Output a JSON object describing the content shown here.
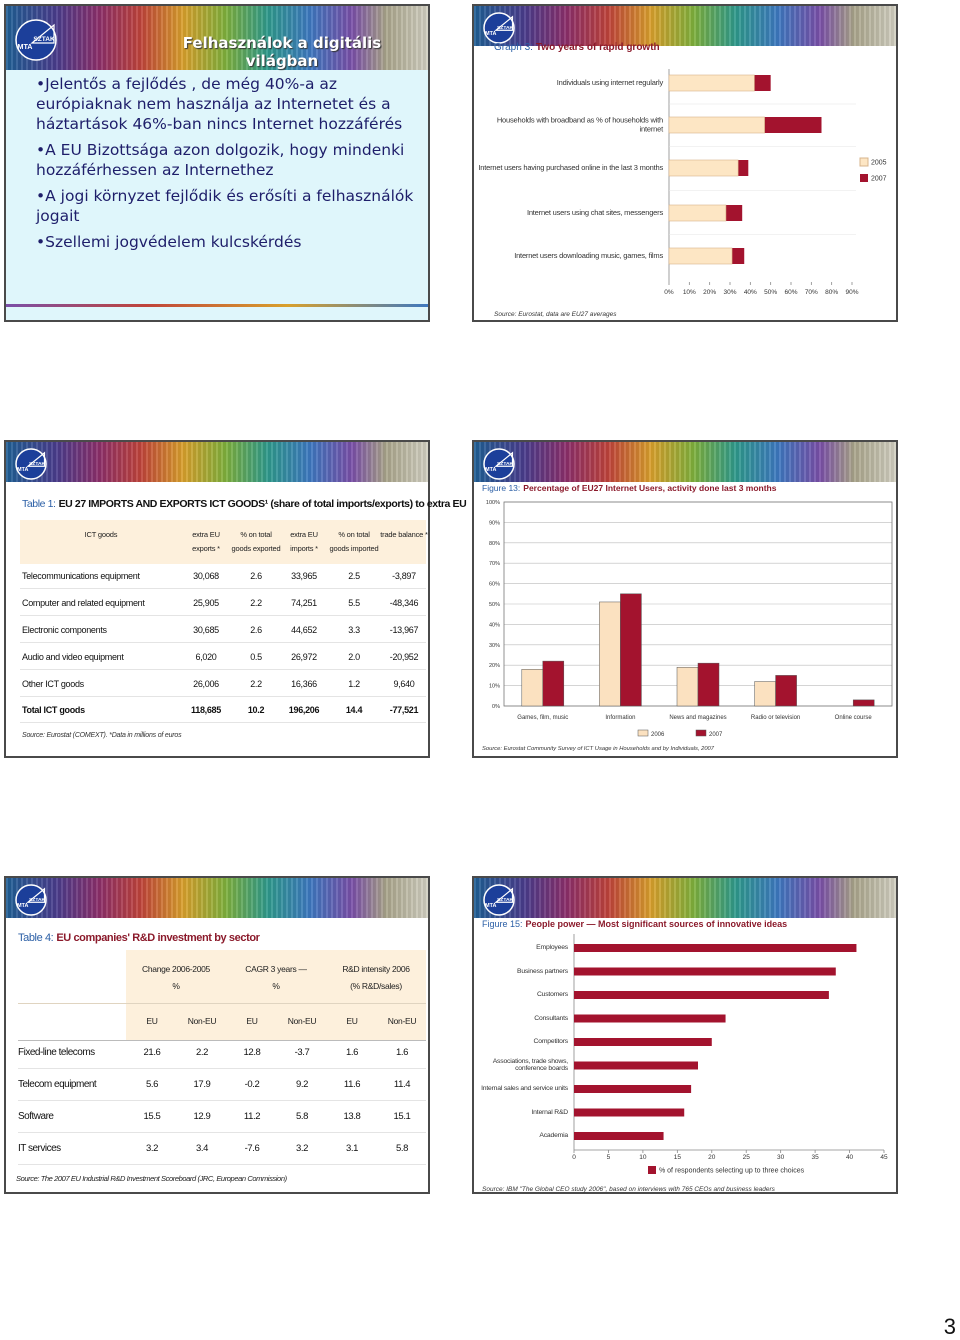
{
  "logo": [
    "MTA",
    "SZTAKI"
  ],
  "page_number": "3",
  "slides": [
    {
      "type": "bullets",
      "title": "Felhasználok a digitális világban",
      "bullets": [
        "Jelentős a fejlődés , de még 40%-a az európiaknak nem használja az Internetet és a háztartások 46%-ban nincs Internet hozzáférés",
        "A EU Bizottsága azon dolgozik, hogy mindenki hozzáférhessen az Internethez",
        "A jogi környzet fejlődik és erősíti a felhasználók jogait",
        "Szellemi jogvédelem kulcskérdés"
      ]
    },
    {
      "type": "hbar",
      "label": "Graph 3:",
      "title": "Two years of rapid growth",
      "categories": [
        "Individuals using internet regularly",
        "Households with broadband as % of households with internet",
        "Internet users having purchased online in the last 3 months",
        "Internet users using chat sites, messengers",
        "Internet users downloading music, games, films"
      ],
      "series": [
        {
          "name": "2005",
          "color": "#fde6c4",
          "values": [
            42,
            47,
            34,
            28,
            31
          ]
        },
        {
          "name": "2007",
          "color": "#a3132e",
          "values": [
            50,
            75,
            39,
            36,
            37
          ]
        }
      ],
      "xlim": [
        0,
        90
      ],
      "xticks": [
        {
          "value": 0,
          "label": "0%"
        },
        {
          "value": 10,
          "label": "10%"
        },
        {
          "value": 20,
          "label": "20%"
        },
        {
          "value": 30,
          "label": "30%"
        },
        {
          "value": 40,
          "label": "40%"
        },
        {
          "value": 50,
          "label": "50%"
        },
        {
          "value": 60,
          "label": "60%"
        },
        {
          "value": 70,
          "label": "70%"
        },
        {
          "value": 80,
          "label": "80%"
        },
        {
          "value": 90,
          "label": "90%"
        }
      ],
      "legend": "right",
      "source": "Source: Eurostat, data are EU27 averages"
    },
    {
      "type": "table",
      "label": "Table 1:",
      "title": "EU 27 IMPORTS AND EXPORTS ICT GOODS¹ (share of total imports/exports) to extra EU",
      "columns": [
        "ICT goods",
        "extra EU exports *",
        "% on total goods exported",
        "extra EU imports *",
        "% on total goods imported",
        "trade balance *"
      ],
      "rows": [
        [
          "Telecommunications equipment",
          "30,068",
          "2.6",
          "33,965",
          "2.5",
          "-3,897"
        ],
        [
          "Computer and related equipment",
          "25,905",
          "2.2",
          "74,251",
          "5.5",
          "-48,346"
        ],
        [
          "Electronic components",
          "30,685",
          "2.6",
          "44,652",
          "3.3",
          "-13,967"
        ],
        [
          "Audio and video equipment",
          "6,020",
          "0.5",
          "26,972",
          "2.0",
          "-20,952"
        ],
        [
          "Other ICT goods",
          "26,006",
          "2.2",
          "16,366",
          "1.2",
          "9,640"
        ],
        [
          "Total ICT goods",
          "118,685",
          "10.2",
          "196,206",
          "14.4",
          "-77,521"
        ]
      ],
      "source": "Source: Eurostat (COMEXT). *Data in millions of euros"
    },
    {
      "type": "vbar",
      "label": "Figure 13:",
      "title": "Percentage of EU27 Internet Users, activity done last 3 months",
      "categories": [
        "Games, film, music",
        "Information",
        "News and magazines",
        "Radio or television",
        "Online course"
      ],
      "series": [
        {
          "name": "2006",
          "color": "#fbe1c0",
          "values": [
            18,
            51,
            19,
            12,
            null
          ]
        },
        {
          "name": "2007",
          "color": "#a3132e",
          "values": [
            22,
            55,
            21,
            15,
            3
          ]
        }
      ],
      "ylim": [
        0,
        100
      ],
      "yticks": [
        {
          "value": 0,
          "label": "0%"
        },
        {
          "value": 10,
          "label": "10%"
        },
        {
          "value": 20,
          "label": "20%"
        },
        {
          "value": 30,
          "label": "30%"
        },
        {
          "value": 40,
          "label": "40%"
        },
        {
          "value": 50,
          "label": "50%"
        },
        {
          "value": 60,
          "label": "60%"
        },
        {
          "value": 70,
          "label": "70%"
        },
        {
          "value": 80,
          "label": "80%"
        },
        {
          "value": 90,
          "label": "90%"
        },
        {
          "value": 100,
          "label": "100%"
        }
      ],
      "grid": true,
      "legend": "bottom",
      "source": "Source: Eurostat Community Survey of ICT Usage in Households and by Individuals, 2007"
    },
    {
      "type": "table2",
      "label": "Table 4:",
      "title": "EU companies' R&D investment by sector",
      "groups": [
        [
          "Change 2006-2005",
          "%"
        ],
        [
          "CAGR 3 years —",
          "%"
        ],
        [
          "R&D intensity 2006",
          "(% R&D/sales)"
        ]
      ],
      "subheaders": [
        "EU",
        "Non-EU",
        "EU",
        "Non-EU",
        "EU",
        "Non-EU"
      ],
      "rows": [
        [
          "Fixed-line telecoms",
          "21.6",
          "2.2",
          "12.8",
          "-3.7",
          "1.6",
          "1.6"
        ],
        [
          "Telecom equipment",
          "5.6",
          "17.9",
          "-0.2",
          "9.2",
          "11.6",
          "11.4"
        ],
        [
          "Software",
          "15.5",
          "12.9",
          "11.2",
          "5.8",
          "13.8",
          "15.1"
        ],
        [
          "IT services",
          "3.2",
          "3.4",
          "-7.6",
          "3.2",
          "3.1",
          "5.8"
        ]
      ],
      "source": "Source: The 2007 EU Industrial R&D Investment Scoreboard (JRC, European Commission)"
    },
    {
      "type": "hbar",
      "label": "Figure 15:",
      "title": "People power — Most significant sources of innovative ideas",
      "categories": [
        "Employees",
        "Business partners",
        "Customers",
        "Consultants",
        "Competitors",
        "Associations, trade shows, conference boards",
        "Internal sales and service units",
        "Internal R&D",
        "Academia"
      ],
      "series": [
        {
          "name": "% of respondents selecting up to three choices",
          "color": "#a3132e",
          "values": [
            41,
            38,
            37,
            22,
            20,
            18,
            17,
            16,
            13
          ]
        }
      ],
      "xlim": [
        0,
        45
      ],
      "xticks": [
        0,
        5,
        10,
        15,
        20,
        25,
        30,
        35,
        40,
        45
      ],
      "legend": "bottom",
      "source": "Source: IBM \"The Global CEO study 2006\", based on interviews with 765 CEOs and business leaders"
    }
  ]
}
